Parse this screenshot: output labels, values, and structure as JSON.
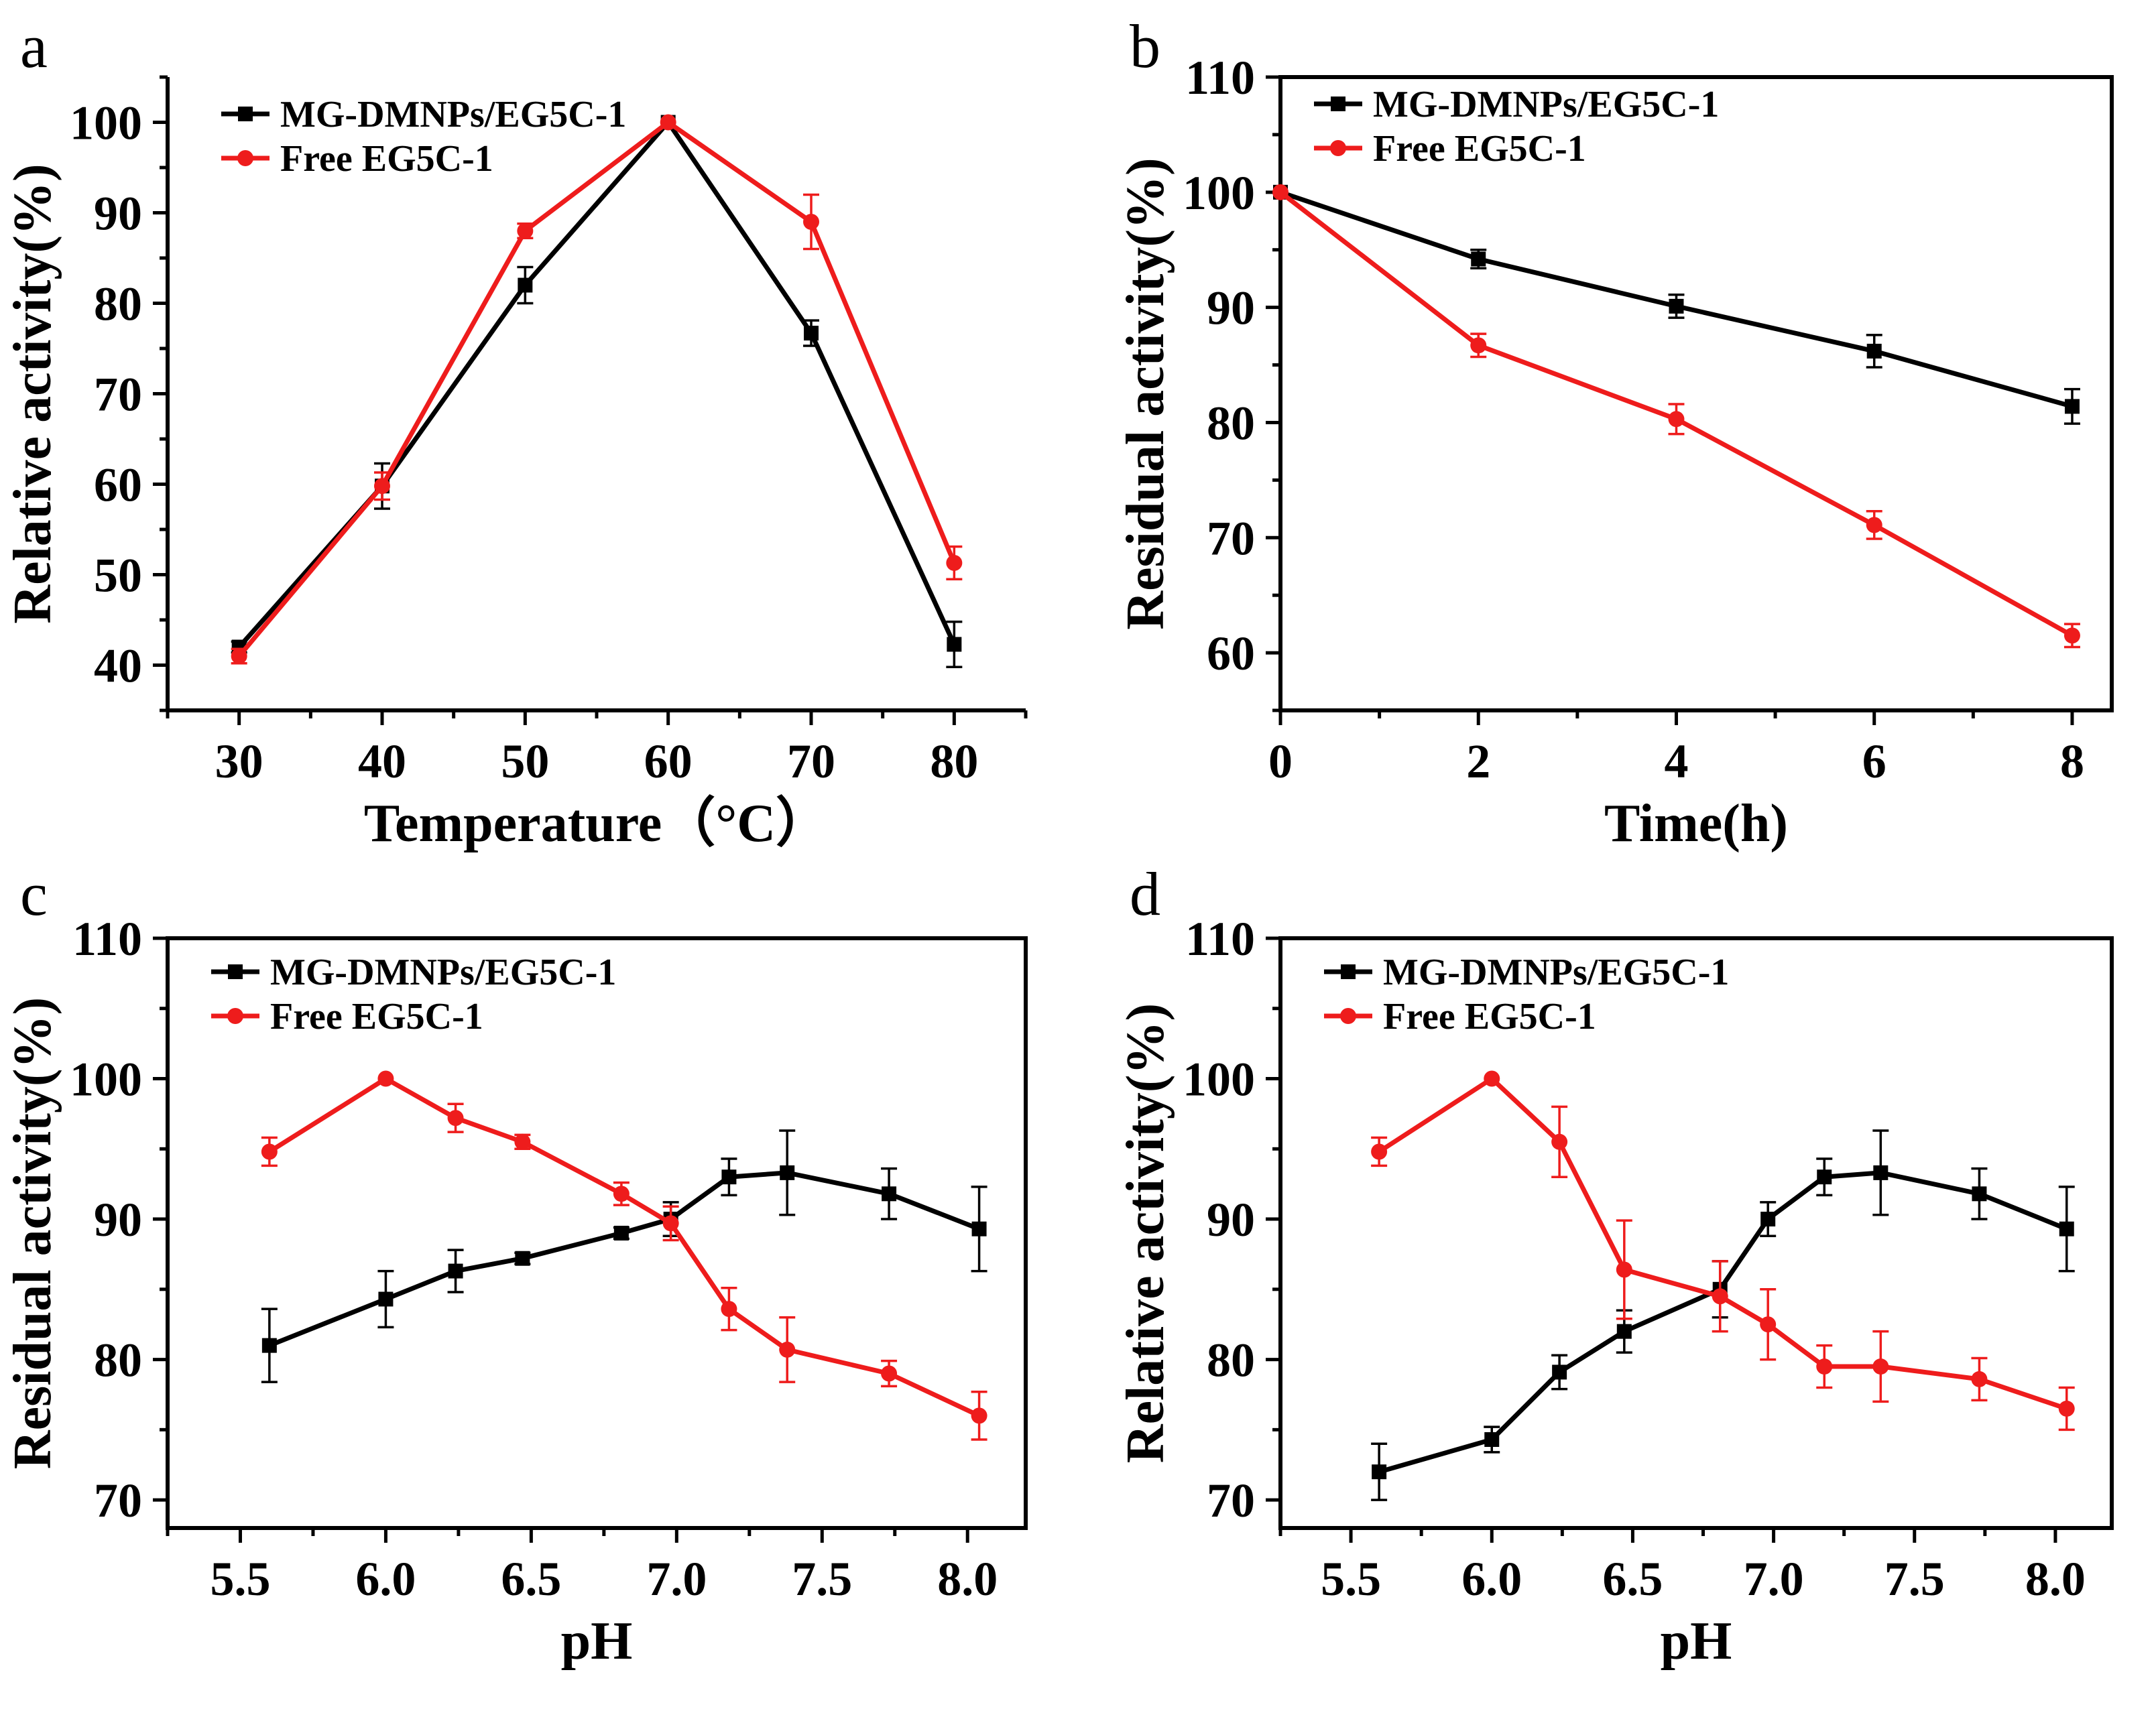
{
  "chart_data": [
    {
      "panel": "a",
      "type": "line",
      "xlabel": "Temperature（°C）",
      "ylabel": "Relative activity(%)",
      "xlim": [
        25,
        85
      ],
      "ylim": [
        35,
        105
      ],
      "xticks": [
        30,
        40,
        50,
        60,
        70,
        80
      ],
      "xtick_labels": [
        "30",
        "40",
        "50",
        "60",
        "70",
        "80"
      ],
      "yticks": [
        40,
        50,
        60,
        70,
        80,
        90,
        100
      ],
      "ytick_labels": [
        "40",
        "50",
        "60",
        "70",
        "80",
        "90",
        "100"
      ],
      "box": false,
      "legend_position": "top-left",
      "series": [
        {
          "name": "MG-DMNPs/EG5C-1",
          "color": "#000000",
          "marker": "square",
          "x": [
            30,
            40,
            50,
            60,
            70,
            80
          ],
          "y": [
            42,
            59.8,
            82,
            100,
            76.7,
            42.3
          ],
          "err": [
            0.6,
            2.5,
            2.0,
            0,
            1.4,
            2.5
          ]
        },
        {
          "name": "Free EG5C-1",
          "color": "#ee1c1c",
          "marker": "circle",
          "x": [
            30,
            40,
            50,
            60,
            70,
            80
          ],
          "y": [
            41,
            59.8,
            88,
            100,
            89,
            51.3
          ],
          "err": [
            0.8,
            1.5,
            0.8,
            0,
            3.0,
            1.8
          ]
        }
      ]
    },
    {
      "panel": "b",
      "type": "line",
      "xlabel": "Time(h)",
      "ylabel": "Residual activity(%)",
      "xlim": [
        0,
        8.4
      ],
      "ylim": [
        55,
        110
      ],
      "xticks": [
        0,
        2,
        4,
        6,
        8
      ],
      "xtick_labels": [
        "0",
        "2",
        "4",
        "6",
        "8"
      ],
      "yticks": [
        60,
        70,
        80,
        90,
        100,
        110
      ],
      "ytick_labels": [
        "60",
        "70",
        "80",
        "90",
        "100",
        "110"
      ],
      "box": true,
      "legend_position": "top-left",
      "series": [
        {
          "name": "MG-DMNPs/EG5C-1",
          "color": "#000000",
          "marker": "square",
          "x": [
            0,
            2,
            4,
            6,
            8
          ],
          "y": [
            100,
            94.2,
            90.1,
            86.2,
            81.4
          ],
          "err": [
            0,
            0.8,
            1.0,
            1.4,
            1.5
          ]
        },
        {
          "name": "Free EG5C-1",
          "color": "#ee1c1c",
          "marker": "circle",
          "x": [
            0,
            2,
            4,
            6,
            8
          ],
          "y": [
            100,
            86.7,
            80.3,
            71.1,
            61.5
          ],
          "err": [
            0,
            1.0,
            1.3,
            1.2,
            1.0
          ]
        }
      ]
    },
    {
      "panel": "c",
      "type": "line",
      "xlabel": "pH",
      "ylabel": "Residual activity(%)",
      "xlim": [
        5.25,
        8.2
      ],
      "ylim": [
        68,
        110
      ],
      "xticks": [
        5.5,
        6.0,
        6.5,
        7.0,
        7.5,
        8.0
      ],
      "xtick_labels": [
        "5.5",
        "6.0",
        "6.5",
        "7.0",
        "7.5",
        "8.0"
      ],
      "yticks": [
        70,
        80,
        90,
        100,
        110
      ],
      "ytick_labels": [
        "70",
        "80",
        "90",
        "100",
        "110"
      ],
      "box": true,
      "legend_position": "top-left",
      "series": [
        {
          "name": "MG-DMNPs/EG5C-1",
          "color": "#000000",
          "marker": "square",
          "x": [
            5.6,
            6.0,
            6.24,
            6.47,
            6.81,
            6.98,
            7.18,
            7.38,
            7.73,
            8.04
          ],
          "y": [
            81.0,
            84.3,
            86.3,
            87.2,
            89.0,
            90.0,
            93.0,
            93.3,
            91.8,
            89.3
          ],
          "err": [
            2.6,
            2.0,
            1.5,
            0.4,
            0.4,
            1.2,
            1.3,
            3.0,
            1.8,
            3.0
          ]
        },
        {
          "name": "Free EG5C-1",
          "color": "#ee1c1c",
          "marker": "circle",
          "x": [
            5.6,
            6.0,
            6.24,
            6.47,
            6.81,
            6.98,
            7.18,
            7.38,
            7.73,
            8.04
          ],
          "y": [
            94.8,
            100,
            97.2,
            95.5,
            91.8,
            89.7,
            83.6,
            80.7,
            79.0,
            76.0
          ],
          "err": [
            1.0,
            0,
            1.0,
            0.5,
            0.8,
            1.2,
            1.5,
            2.3,
            0.9,
            1.7
          ]
        }
      ]
    },
    {
      "panel": "d",
      "type": "line",
      "xlabel": "pH",
      "ylabel": "Relative activity(%)",
      "xlim": [
        5.25,
        8.2
      ],
      "ylim": [
        68,
        110
      ],
      "xticks": [
        5.5,
        6.0,
        6.5,
        7.0,
        7.5,
        8.0
      ],
      "xtick_labels": [
        "5.5",
        "6.0",
        "6.5",
        "7.0",
        "7.5",
        "8.0"
      ],
      "yticks": [
        70,
        80,
        90,
        100,
        110
      ],
      "ytick_labels": [
        "70",
        "80",
        "90",
        "100",
        "110"
      ],
      "box": true,
      "legend_position": "top-left",
      "series": [
        {
          "name": "MG-DMNPs/EG5C-1",
          "color": "#000000",
          "marker": "square",
          "x": [
            5.6,
            6.0,
            6.24,
            6.47,
            6.81,
            6.98,
            7.18,
            7.38,
            7.73,
            8.04
          ],
          "y": [
            72.0,
            74.3,
            79.1,
            82.0,
            85.0,
            90.0,
            93.0,
            93.3,
            91.8,
            89.3
          ],
          "err": [
            2.0,
            0.9,
            1.2,
            1.5,
            2.0,
            1.2,
            1.3,
            3.0,
            1.8,
            3.0
          ]
        },
        {
          "name": "Free EG5C-1",
          "color": "#ee1c1c",
          "marker": "circle",
          "x": [
            5.6,
            6.0,
            6.24,
            6.47,
            6.81,
            6.98,
            7.18,
            7.38,
            7.73,
            8.04
          ],
          "y": [
            94.8,
            100,
            95.5,
            86.4,
            84.5,
            82.5,
            79.5,
            79.5,
            78.6,
            76.5
          ],
          "err": [
            1.0,
            0,
            2.5,
            3.5,
            2.5,
            2.5,
            1.5,
            2.5,
            1.5,
            1.5
          ]
        }
      ]
    }
  ]
}
